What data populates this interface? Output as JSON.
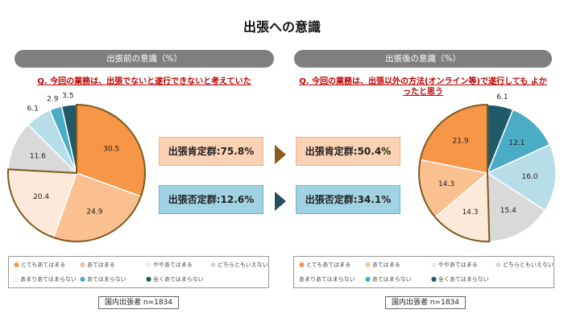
{
  "title": "出張への意識",
  "legend_marks": {
    "dot": "●",
    "triangle": "△"
  },
  "legend_labels": [
    "とてもあてはまる",
    "あてはまる",
    "ややあてはまる",
    "どちらともいえない",
    "あまりあてはまらない",
    "あてはまらない",
    "全くあてはまらない"
  ],
  "colors": [
    "#f79646",
    "#fac090",
    "#fde9d9",
    "#d9d9d9",
    "#b7dde8",
    "#4bacc6",
    "#215968"
  ],
  "left": {
    "header": "出張前の意識（%）",
    "question": "Q. 今回の業務は、出張でないと遂行できないと考えていた",
    "positive_box": "出張肯定群:75.8%",
    "negative_box": "出張否定群:12.6%",
    "sample": "国内出張者 n=1834"
  },
  "right": {
    "header": "出張後の意識（%）",
    "question": "Q. 今回の業務は、出張以外の方法(オンライン等)で遂行しても よかったと思う",
    "positive_box": "出張肯定群:50.4%",
    "negative_box": "出張否定群:34.1%",
    "sample": "国内出張者 n=1834"
  },
  "chart_data": [
    {
      "type": "pie",
      "title": "出張前の意識（%）",
      "categories": [
        "とてもあてはまる",
        "あてはまる",
        "ややあてはまる",
        "どちらともいえない",
        "あまりあてはまらない",
        "あてはまらない",
        "全くあてはまらない"
      ],
      "values": [
        30.5,
        24.9,
        20.4,
        11.6,
        6.1,
        2.9,
        3.5
      ],
      "labels": [
        "30.5",
        "24.9",
        "20.4",
        "11.6",
        "6.1",
        "2.9",
        "3.5"
      ],
      "start": "top",
      "direction": "clockwise",
      "highlight": "affirmative group outlined"
    },
    {
      "type": "pie",
      "title": "出張後の意識（%）",
      "categories": [
        "全くあてはまらない",
        "あてはまらない",
        "あまりあてはまらない",
        "どちらともいえない",
        "ややあてはまる",
        "あてはまる",
        "とてもあてはまる"
      ],
      "values": [
        6.1,
        12.1,
        16.0,
        15.4,
        14.3,
        14.3,
        21.9
      ],
      "labels": [
        "6.1",
        "12.1",
        "16.0",
        "15.4",
        "14.3",
        "14.3",
        "21.9"
      ],
      "start": "top",
      "direction": "clockwise",
      "highlight": "affirmative group outlined"
    }
  ]
}
